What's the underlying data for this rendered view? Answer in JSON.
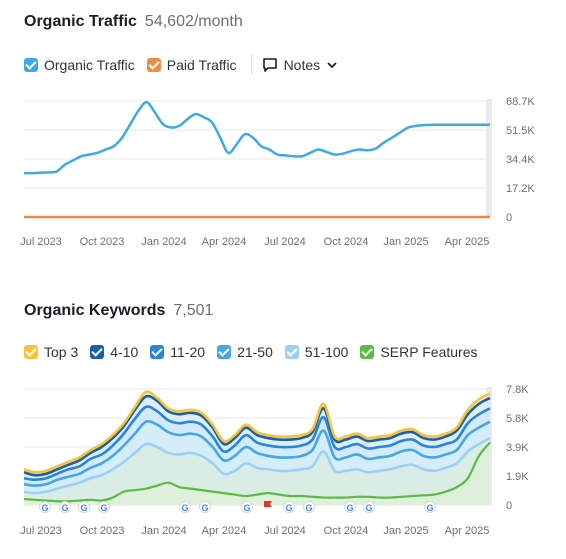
{
  "traffic": {
    "title": "Organic Traffic",
    "value": "54,602/month",
    "legend": [
      {
        "label": "Organic Traffic",
        "color": "#3fa9e5"
      },
      {
        "label": "Paid Traffic",
        "color": "#f08a45"
      }
    ],
    "notes_label": "Notes"
  },
  "keywords": {
    "title": "Organic Keywords",
    "value": "7,501",
    "legend": [
      {
        "label": "Top 3",
        "color": "#f7c338"
      },
      {
        "label": "4-10",
        "color": "#1b5fa8"
      },
      {
        "label": "11-20",
        "color": "#2a84d8"
      },
      {
        "label": "21-50",
        "color": "#45a6ea"
      },
      {
        "label": "51-100",
        "color": "#9dd0f5"
      },
      {
        "label": "SERP Features",
        "color": "#5cb944"
      }
    ]
  },
  "chart_data": [
    {
      "type": "line",
      "x_ticks": [
        "Jul 2023",
        "Oct 2023",
        "Jan 2024",
        "Apr 2024",
        "Jul 2024",
        "Oct 2024",
        "Jan 2025",
        "Apr 2025"
      ],
      "y_ticks": [
        "68.7K",
        "51.5K",
        "34.4K",
        "17.2K",
        "0"
      ],
      "ylim": [
        0,
        68700
      ],
      "grid": true,
      "x_months": [
        0,
        1,
        2,
        3,
        4,
        5,
        6,
        7,
        8,
        9,
        10,
        11,
        12,
        13,
        14,
        15,
        16,
        17,
        18,
        19,
        20,
        21,
        22,
        23,
        24,
        25,
        26,
        27,
        28,
        29,
        30,
        31,
        32,
        33,
        34,
        35,
        36,
        37,
        38,
        39,
        40,
        41,
        42,
        43,
        44,
        45,
        46,
        47,
        48,
        49,
        50,
        51,
        52,
        53,
        54,
        55,
        56,
        57
      ],
      "x_start": "Jun 2023",
      "series": [
        {
          "name": "Organic Traffic",
          "color": "#3fa9e5",
          "values": [
            26000,
            26000,
            26200,
            26400,
            27000,
            31000,
            33500,
            36000,
            37000,
            38000,
            40000,
            42000,
            47000,
            55000,
            63000,
            68000,
            62000,
            55000,
            53000,
            54000,
            58000,
            61000,
            59000,
            56000,
            47000,
            38000,
            43000,
            49000,
            47000,
            42000,
            40000,
            37000,
            36500,
            36000,
            36000,
            38000,
            40000,
            38500,
            37000,
            37500,
            39000,
            40000,
            39500,
            40500,
            44000,
            47000,
            50000,
            53000,
            54000,
            54500,
            54602,
            54602,
            54602,
            54602,
            54602,
            54602,
            54602,
            54602
          ]
        },
        {
          "name": "Paid Traffic",
          "color": "#f08a45",
          "values": [
            0,
            0,
            0,
            0,
            0,
            0,
            0,
            0,
            0,
            0,
            0,
            0,
            0,
            0,
            0,
            0,
            0,
            0,
            0,
            0,
            0,
            0,
            0,
            0,
            0,
            0,
            0,
            0,
            0,
            0,
            0,
            0,
            0,
            0,
            0,
            0,
            0,
            0,
            0,
            0,
            0,
            0,
            0,
            0,
            0,
            0,
            0,
            0,
            0,
            0,
            0,
            0,
            0,
            0,
            0,
            0,
            0,
            0
          ]
        }
      ]
    },
    {
      "type": "area",
      "x_ticks": [
        "Jul 2023",
        "Oct 2023",
        "Jan 2024",
        "Apr 2024",
        "Jul 2024",
        "Oct 2024",
        "Jan 2025",
        "Apr 2025"
      ],
      "y_ticks": [
        "7.8K",
        "5.8K",
        "3.9K",
        "1.9K",
        "0"
      ],
      "ylim": [
        0,
        7800
      ],
      "grid": true,
      "series": [
        {
          "name": "Top 3",
          "color": "#f7c338",
          "values": [
            2400,
            2200,
            2300,
            2600,
            2900,
            3200,
            3700,
            4100,
            4700,
            5500,
            6600,
            7600,
            7200,
            6500,
            6300,
            6400,
            6200,
            5400,
            4300,
            4700,
            5400,
            4900,
            4700,
            4600,
            4600,
            4700,
            5100,
            6800,
            4600,
            4600,
            4800,
            4500,
            4600,
            4700,
            5000,
            5100,
            4700,
            4600,
            4800,
            5200,
            6400,
            7100,
            7500
          ]
        },
        {
          "name": "4-10",
          "color": "#1b5fa8",
          "values": [
            2200,
            2000,
            2100,
            2400,
            2700,
            3000,
            3500,
            3900,
            4500,
            5300,
            6400,
            7300,
            7000,
            6300,
            6100,
            6200,
            6000,
            5200,
            4100,
            4500,
            5200,
            4700,
            4500,
            4400,
            4400,
            4500,
            4900,
            6500,
            4400,
            4400,
            4600,
            4300,
            4400,
            4500,
            4800,
            4900,
            4500,
            4400,
            4600,
            5000,
            6100,
            6800,
            7200
          ]
        },
        {
          "name": "11-20",
          "color": "#2a84d8",
          "values": [
            1800,
            1700,
            1800,
            2100,
            2400,
            2600,
            3100,
            3400,
            4000,
            4800,
            5800,
            6600,
            6300,
            5700,
            5500,
            5600,
            5400,
            4600,
            3600,
            4000,
            4700,
            4200,
            4000,
            3900,
            3900,
            4000,
            4400,
            5900,
            3900,
            3900,
            4100,
            3800,
            3900,
            4000,
            4300,
            4400,
            4000,
            3900,
            4100,
            4400,
            5500,
            6100,
            6500
          ]
        },
        {
          "name": "21-50",
          "color": "#45a6ea",
          "values": [
            1400,
            1300,
            1400,
            1700,
            1900,
            2100,
            2500,
            2800,
            3300,
            4000,
            4800,
            5600,
            5400,
            4900,
            4700,
            4800,
            4600,
            3900,
            3000,
            3300,
            3900,
            3500,
            3300,
            3200,
            3200,
            3300,
            3700,
            5000,
            3200,
            3200,
            3400,
            3100,
            3200,
            3300,
            3600,
            3700,
            3300,
            3200,
            3400,
            3700,
            4700,
            5200,
            5600
          ]
        },
        {
          "name": "51-100",
          "color": "#9dd0f5",
          "values": [
            900,
            800,
            900,
            1100,
            1300,
            1500,
            1800,
            2000,
            2400,
            2900,
            3500,
            4100,
            3900,
            3500,
            3400,
            3500,
            3300,
            2800,
            2100,
            2300,
            2800,
            2500,
            2400,
            2300,
            2300,
            2400,
            2600,
            3600,
            2300,
            2300,
            2400,
            2200,
            2300,
            2400,
            2600,
            2700,
            2400,
            2300,
            2500,
            2800,
            3600,
            4100,
            4500
          ]
        },
        {
          "name": "SERP Features",
          "color": "#5cb944",
          "values": [
            400,
            350,
            300,
            250,
            250,
            300,
            350,
            300,
            500,
            900,
            1000,
            1100,
            1300,
            1500,
            1200,
            1100,
            1000,
            900,
            800,
            700,
            600,
            700,
            800,
            700,
            600,
            600,
            550,
            500,
            500,
            500,
            550,
            550,
            500,
            500,
            550,
            600,
            650,
            700,
            900,
            1200,
            1800,
            3300,
            4200
          ]
        }
      ]
    }
  ]
}
